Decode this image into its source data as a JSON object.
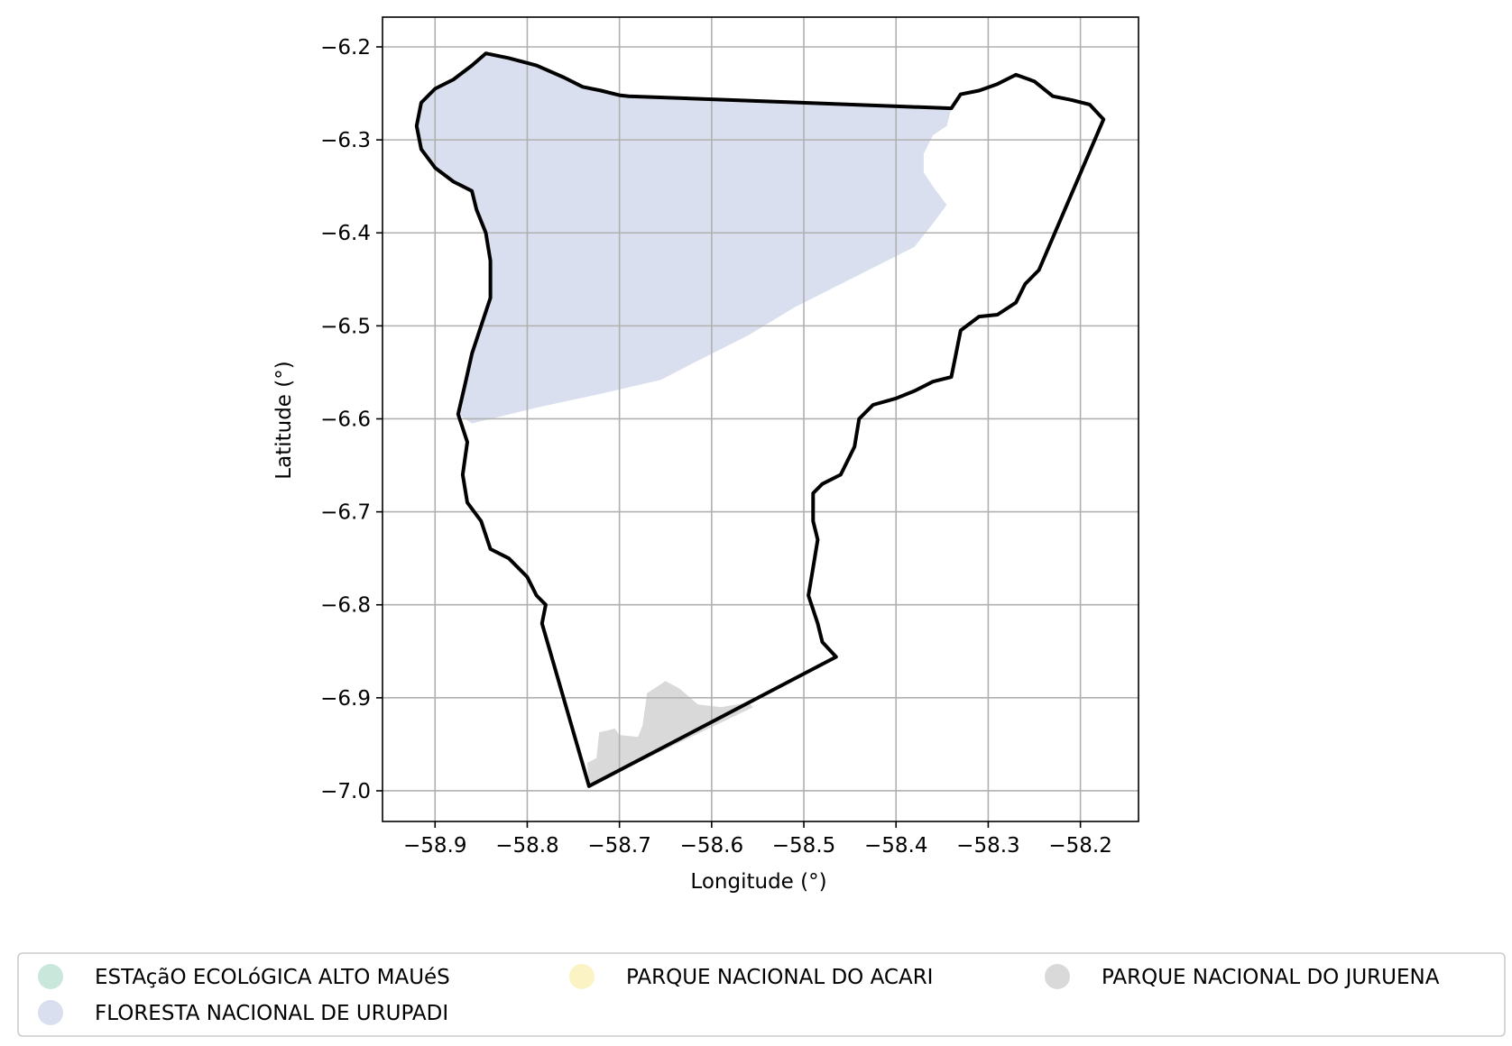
{
  "chart_data": {
    "type": "map",
    "xlabel": "Longitude (°)",
    "ylabel": "Latitude (°)",
    "xlim": [
      -58.957,
      -58.137
    ],
    "ylim": [
      -7.033,
      -6.168
    ],
    "x_ticks": [
      -58.9,
      -58.8,
      -58.7,
      -58.6,
      -58.5,
      -58.4,
      -58.3,
      -58.2
    ],
    "y_ticks": [
      -6.2,
      -6.3,
      -6.4,
      -6.5,
      -6.6,
      -6.7,
      -6.8,
      -6.9,
      -7.0
    ],
    "x_tick_labels": [
      "−58.9",
      "−58.8",
      "−58.7",
      "−58.6",
      "−58.5",
      "−58.4",
      "−58.3",
      "−58.2"
    ],
    "y_tick_labels": [
      "−6.2",
      "−6.3",
      "−6.4",
      "−6.5",
      "−6.6",
      "−6.7",
      "−6.8",
      "−6.9",
      "−7.0"
    ],
    "grid": true,
    "legend_position": "bottom",
    "legend": [
      {
        "label": "ESTAçãO ECOLóGICA ALTO MAUéS",
        "color": "#c9e8db"
      },
      {
        "label": "PARQUE NACIONAL DO ACARI",
        "color": "#fbf3c4"
      },
      {
        "label": "PARQUE NACIONAL DO JURUENA",
        "color": "#d9d9d9"
      },
      {
        "label": "FLORESTA NACIONAL DE URUPADI",
        "color": "#d9dfee"
      }
    ],
    "boundary_color": "#000000",
    "boundary": [
      [
        -58.845,
        -6.207
      ],
      [
        -58.82,
        -6.212
      ],
      [
        -58.79,
        -6.22
      ],
      [
        -58.76,
        -6.233
      ],
      [
        -58.74,
        -6.243
      ],
      [
        -58.72,
        -6.247
      ],
      [
        -58.7,
        -6.252
      ],
      [
        -58.69,
        -6.253
      ],
      [
        -58.34,
        -6.266
      ],
      [
        -58.33,
        -6.251
      ],
      [
        -58.31,
        -6.247
      ],
      [
        -58.29,
        -6.24
      ],
      [
        -58.27,
        -6.23
      ],
      [
        -58.25,
        -6.237
      ],
      [
        -58.23,
        -6.253
      ],
      [
        -58.21,
        -6.257
      ],
      [
        -58.19,
        -6.262
      ],
      [
        -58.175,
        -6.278
      ],
      [
        -58.245,
        -6.44
      ],
      [
        -58.26,
        -6.455
      ],
      [
        -58.27,
        -6.475
      ],
      [
        -58.29,
        -6.488
      ],
      [
        -58.31,
        -6.49
      ],
      [
        -58.33,
        -6.505
      ],
      [
        -58.335,
        -6.53
      ],
      [
        -58.34,
        -6.555
      ],
      [
        -58.36,
        -6.56
      ],
      [
        -58.38,
        -6.57
      ],
      [
        -58.4,
        -6.578
      ],
      [
        -58.425,
        -6.585
      ],
      [
        -58.44,
        -6.6
      ],
      [
        -58.445,
        -6.63
      ],
      [
        -58.46,
        -6.66
      ],
      [
        -58.48,
        -6.67
      ],
      [
        -58.49,
        -6.68
      ],
      [
        -58.49,
        -6.71
      ],
      [
        -58.485,
        -6.73
      ],
      [
        -58.49,
        -6.76
      ],
      [
        -58.495,
        -6.79
      ],
      [
        -58.485,
        -6.82
      ],
      [
        -58.48,
        -6.84
      ],
      [
        -58.465,
        -6.856
      ],
      [
        -58.733,
        -6.995
      ],
      [
        -58.784,
        -6.82
      ],
      [
        -58.78,
        -6.8
      ],
      [
        -58.79,
        -6.79
      ],
      [
        -58.8,
        -6.77
      ],
      [
        -58.82,
        -6.75
      ],
      [
        -58.84,
        -6.74
      ],
      [
        -58.85,
        -6.71
      ],
      [
        -58.865,
        -6.69
      ],
      [
        -58.87,
        -6.66
      ],
      [
        -58.865,
        -6.625
      ],
      [
        -58.875,
        -6.595
      ],
      [
        -58.868,
        -6.565
      ],
      [
        -58.86,
        -6.53
      ],
      [
        -58.85,
        -6.5
      ],
      [
        -58.84,
        -6.47
      ],
      [
        -58.84,
        -6.43
      ],
      [
        -58.845,
        -6.4
      ],
      [
        -58.855,
        -6.375
      ],
      [
        -58.86,
        -6.355
      ],
      [
        -58.88,
        -6.345
      ],
      [
        -58.9,
        -6.33
      ],
      [
        -58.915,
        -6.31
      ],
      [
        -58.92,
        -6.285
      ],
      [
        -58.915,
        -6.26
      ],
      [
        -58.9,
        -6.245
      ],
      [
        -58.88,
        -6.235
      ],
      [
        -58.86,
        -6.22
      ],
      [
        -58.845,
        -6.207
      ]
    ],
    "polygons": [
      {
        "name": "FLORESTA NACIONAL DE URUPADI",
        "color": "#d9dfee",
        "coords": [
          [
            -58.845,
            -6.207
          ],
          [
            -58.82,
            -6.212
          ],
          [
            -58.79,
            -6.22
          ],
          [
            -58.76,
            -6.233
          ],
          [
            -58.74,
            -6.243
          ],
          [
            -58.72,
            -6.247
          ],
          [
            -58.7,
            -6.252
          ],
          [
            -58.69,
            -6.253
          ],
          [
            -58.34,
            -6.266
          ],
          [
            -58.345,
            -6.285
          ],
          [
            -58.36,
            -6.295
          ],
          [
            -58.37,
            -6.315
          ],
          [
            -58.37,
            -6.335
          ],
          [
            -58.36,
            -6.35
          ],
          [
            -58.345,
            -6.37
          ],
          [
            -58.36,
            -6.39
          ],
          [
            -58.38,
            -6.415
          ],
          [
            -58.41,
            -6.43
          ],
          [
            -58.46,
            -6.455
          ],
          [
            -58.51,
            -6.48
          ],
          [
            -58.56,
            -6.51
          ],
          [
            -58.61,
            -6.535
          ],
          [
            -58.655,
            -6.558
          ],
          [
            -58.72,
            -6.573
          ],
          [
            -58.79,
            -6.588
          ],
          [
            -58.86,
            -6.605
          ],
          [
            -58.875,
            -6.595
          ],
          [
            -58.868,
            -6.565
          ],
          [
            -58.86,
            -6.53
          ],
          [
            -58.85,
            -6.5
          ],
          [
            -58.84,
            -6.47
          ],
          [
            -58.84,
            -6.43
          ],
          [
            -58.845,
            -6.4
          ],
          [
            -58.855,
            -6.375
          ],
          [
            -58.86,
            -6.355
          ],
          [
            -58.88,
            -6.345
          ],
          [
            -58.9,
            -6.33
          ],
          [
            -58.915,
            -6.31
          ],
          [
            -58.92,
            -6.285
          ],
          [
            -58.915,
            -6.26
          ],
          [
            -58.9,
            -6.245
          ],
          [
            -58.88,
            -6.235
          ],
          [
            -58.86,
            -6.22
          ],
          [
            -58.845,
            -6.207
          ]
        ]
      },
      {
        "name": "PARQUE NACIONAL DO JURUENA",
        "color": "#d9d9d9",
        "coords": [
          [
            -58.733,
            -6.995
          ],
          [
            -58.735,
            -6.97
          ],
          [
            -58.725,
            -6.965
          ],
          [
            -58.722,
            -6.937
          ],
          [
            -58.712,
            -6.935
          ],
          [
            -58.705,
            -6.933
          ],
          [
            -58.7,
            -6.94
          ],
          [
            -58.68,
            -6.942
          ],
          [
            -58.675,
            -6.93
          ],
          [
            -58.67,
            -6.895
          ],
          [
            -58.65,
            -6.882
          ],
          [
            -58.635,
            -6.89
          ],
          [
            -58.615,
            -6.907
          ],
          [
            -58.59,
            -6.91
          ],
          [
            -58.56,
            -6.905
          ],
          [
            -58.555,
            -6.91
          ],
          [
            -58.733,
            -6.995
          ]
        ]
      }
    ]
  }
}
